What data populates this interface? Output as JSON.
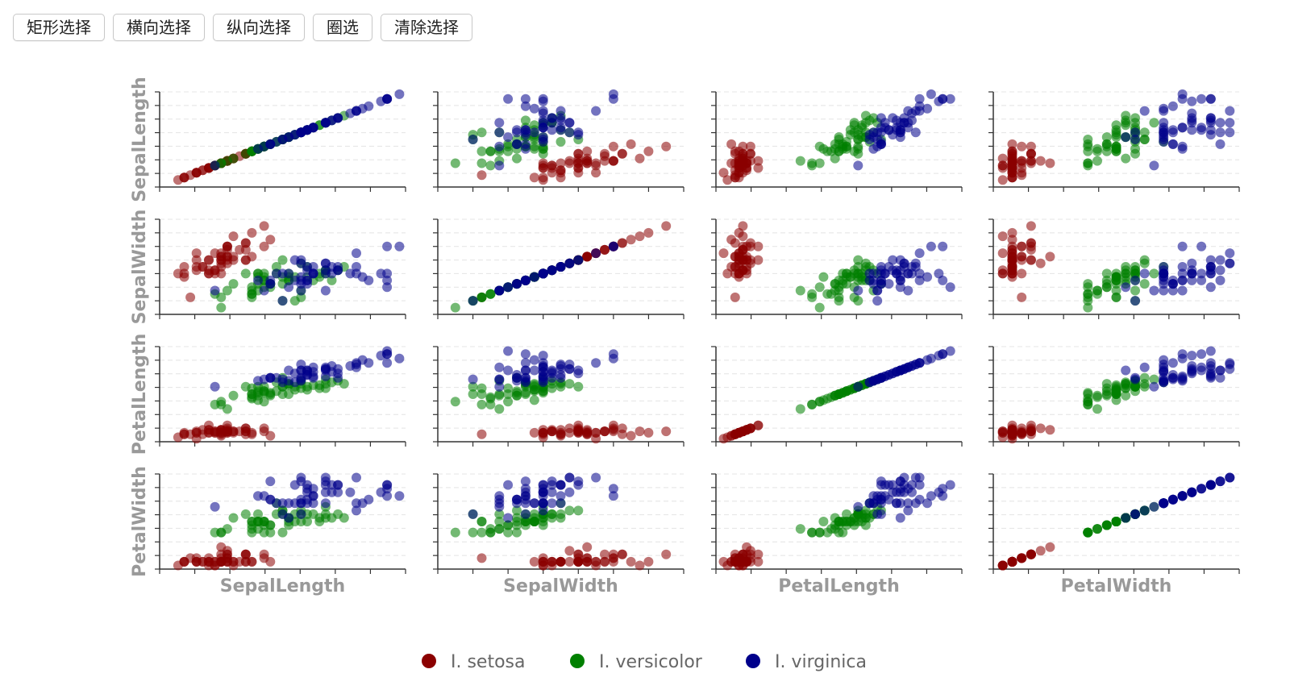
{
  "toolbar": {
    "buttons": [
      "矩形选择",
      "横向选择",
      "纵向选择",
      "圈选",
      "清除选择"
    ]
  },
  "chart_data": {
    "type": "scatter",
    "layout": "scatter-matrix",
    "dimensions": [
      "SepalLength",
      "SepalWidth",
      "PetalLength",
      "PetalWidth"
    ],
    "ranges": {
      "SepalLength": [
        4.0,
        8.0
      ],
      "SepalWidth": [
        1.8,
        4.6
      ],
      "PetalLength": [
        0.8,
        7.2
      ],
      "PetalWidth": [
        0.0,
        2.6
      ]
    },
    "grid": "dashed horizontal",
    "legend_position": "bottom-center",
    "colors": {
      "I. setosa": "#8b0000",
      "I. versicolor": "#008000",
      "I. virginica": "#00008b"
    },
    "series": [
      {
        "name": "I. setosa",
        "points": [
          [
            5.1,
            3.5,
            1.4,
            0.2
          ],
          [
            4.9,
            3.0,
            1.4,
            0.2
          ],
          [
            4.7,
            3.2,
            1.3,
            0.2
          ],
          [
            4.6,
            3.1,
            1.5,
            0.2
          ],
          [
            5.0,
            3.6,
            1.4,
            0.2
          ],
          [
            5.4,
            3.9,
            1.7,
            0.4
          ],
          [
            4.6,
            3.4,
            1.4,
            0.3
          ],
          [
            5.0,
            3.4,
            1.5,
            0.2
          ],
          [
            4.4,
            2.9,
            1.4,
            0.2
          ],
          [
            4.9,
            3.1,
            1.5,
            0.1
          ],
          [
            5.4,
            3.7,
            1.5,
            0.2
          ],
          [
            4.8,
            3.4,
            1.6,
            0.2
          ],
          [
            4.8,
            3.0,
            1.4,
            0.1
          ],
          [
            4.3,
            3.0,
            1.1,
            0.1
          ],
          [
            5.8,
            4.0,
            1.2,
            0.2
          ],
          [
            5.7,
            4.4,
            1.5,
            0.4
          ],
          [
            5.4,
            3.9,
            1.3,
            0.4
          ],
          [
            5.1,
            3.5,
            1.4,
            0.3
          ],
          [
            5.7,
            3.8,
            1.7,
            0.3
          ],
          [
            5.1,
            3.8,
            1.5,
            0.3
          ],
          [
            5.4,
            3.4,
            1.7,
            0.2
          ],
          [
            5.1,
            3.7,
            1.5,
            0.4
          ],
          [
            4.6,
            3.6,
            1.0,
            0.2
          ],
          [
            5.1,
            3.3,
            1.7,
            0.5
          ],
          [
            4.8,
            3.4,
            1.9,
            0.2
          ],
          [
            5.0,
            3.0,
            1.6,
            0.2
          ],
          [
            5.0,
            3.4,
            1.6,
            0.4
          ],
          [
            5.2,
            3.5,
            1.5,
            0.2
          ],
          [
            5.2,
            3.4,
            1.4,
            0.2
          ],
          [
            4.7,
            3.2,
            1.6,
            0.2
          ],
          [
            4.8,
            3.1,
            1.6,
            0.2
          ],
          [
            5.4,
            3.4,
            1.5,
            0.4
          ],
          [
            5.2,
            4.1,
            1.5,
            0.1
          ],
          [
            5.5,
            4.2,
            1.4,
            0.2
          ],
          [
            4.9,
            3.1,
            1.5,
            0.2
          ],
          [
            5.0,
            3.2,
            1.2,
            0.2
          ],
          [
            5.5,
            3.5,
            1.3,
            0.2
          ],
          [
            4.9,
            3.6,
            1.4,
            0.1
          ],
          [
            4.4,
            3.0,
            1.3,
            0.2
          ],
          [
            5.1,
            3.4,
            1.5,
            0.2
          ],
          [
            5.0,
            3.5,
            1.3,
            0.3
          ],
          [
            4.5,
            2.3,
            1.3,
            0.3
          ],
          [
            4.4,
            3.2,
            1.3,
            0.2
          ],
          [
            5.0,
            3.5,
            1.6,
            0.6
          ],
          [
            5.1,
            3.8,
            1.9,
            0.4
          ],
          [
            4.8,
            3.0,
            1.4,
            0.3
          ],
          [
            5.1,
            3.8,
            1.6,
            0.2
          ],
          [
            4.6,
            3.2,
            1.4,
            0.2
          ],
          [
            5.3,
            3.7,
            1.5,
            0.2
          ],
          [
            5.0,
            3.3,
            1.4,
            0.2
          ]
        ]
      },
      {
        "name": "I. versicolor",
        "points": [
          [
            7.0,
            3.2,
            4.7,
            1.4
          ],
          [
            6.4,
            3.2,
            4.5,
            1.5
          ],
          [
            6.9,
            3.1,
            4.9,
            1.5
          ],
          [
            5.5,
            2.3,
            4.0,
            1.3
          ],
          [
            6.5,
            2.8,
            4.6,
            1.5
          ],
          [
            5.7,
            2.8,
            4.5,
            1.3
          ],
          [
            6.3,
            3.3,
            4.7,
            1.6
          ],
          [
            4.9,
            2.4,
            3.3,
            1.0
          ],
          [
            6.6,
            2.9,
            4.6,
            1.3
          ],
          [
            5.2,
            2.7,
            3.9,
            1.4
          ],
          [
            5.0,
            2.0,
            3.5,
            1.0
          ],
          [
            5.9,
            3.0,
            4.2,
            1.5
          ],
          [
            6.0,
            2.2,
            4.0,
            1.0
          ],
          [
            6.1,
            2.9,
            4.7,
            1.4
          ],
          [
            5.6,
            2.9,
            3.6,
            1.3
          ],
          [
            6.7,
            3.1,
            4.4,
            1.4
          ],
          [
            5.6,
            3.0,
            4.5,
            1.5
          ],
          [
            5.8,
            2.7,
            4.1,
            1.0
          ],
          [
            6.2,
            2.2,
            4.5,
            1.5
          ],
          [
            5.6,
            2.5,
            3.9,
            1.1
          ],
          [
            5.9,
            3.2,
            4.8,
            1.8
          ],
          [
            6.1,
            2.8,
            4.0,
            1.3
          ],
          [
            6.3,
            2.5,
            4.9,
            1.5
          ],
          [
            6.1,
            2.8,
            4.7,
            1.2
          ],
          [
            6.4,
            2.9,
            4.3,
            1.3
          ],
          [
            6.6,
            3.0,
            4.4,
            1.4
          ],
          [
            6.8,
            2.8,
            4.8,
            1.4
          ],
          [
            6.7,
            3.0,
            5.0,
            1.7
          ],
          [
            6.0,
            2.9,
            4.5,
            1.5
          ],
          [
            5.7,
            2.6,
            3.5,
            1.0
          ],
          [
            5.5,
            2.4,
            3.8,
            1.1
          ],
          [
            5.5,
            2.4,
            3.7,
            1.0
          ],
          [
            5.8,
            2.7,
            3.9,
            1.2
          ],
          [
            6.0,
            2.7,
            5.1,
            1.6
          ],
          [
            5.4,
            3.0,
            4.5,
            1.5
          ],
          [
            6.0,
            3.4,
            4.5,
            1.6
          ],
          [
            6.7,
            3.1,
            4.7,
            1.5
          ],
          [
            6.3,
            2.3,
            4.4,
            1.3
          ],
          [
            5.6,
            3.0,
            4.1,
            1.3
          ],
          [
            5.5,
            2.5,
            4.0,
            1.3
          ],
          [
            5.5,
            2.6,
            4.4,
            1.2
          ],
          [
            6.1,
            3.0,
            4.6,
            1.4
          ],
          [
            5.8,
            2.6,
            4.0,
            1.2
          ],
          [
            5.0,
            2.3,
            3.3,
            1.0
          ],
          [
            5.6,
            2.7,
            4.2,
            1.3
          ],
          [
            5.7,
            3.0,
            4.2,
            1.2
          ],
          [
            5.7,
            2.9,
            4.2,
            1.3
          ],
          [
            6.2,
            2.9,
            4.3,
            1.3
          ],
          [
            5.1,
            2.5,
            3.0,
            1.1
          ],
          [
            5.7,
            2.8,
            4.1,
            1.3
          ]
        ]
      },
      {
        "name": "I. virginica",
        "points": [
          [
            6.3,
            3.3,
            6.0,
            2.5
          ],
          [
            5.8,
            2.7,
            5.1,
            1.9
          ],
          [
            7.1,
            3.0,
            5.9,
            2.1
          ],
          [
            6.3,
            2.9,
            5.6,
            1.8
          ],
          [
            6.5,
            3.0,
            5.8,
            2.2
          ],
          [
            7.6,
            3.0,
            6.6,
            2.1
          ],
          [
            4.9,
            2.5,
            4.5,
            1.7
          ],
          [
            7.3,
            2.9,
            6.3,
            1.8
          ],
          [
            6.7,
            2.5,
            5.8,
            1.8
          ],
          [
            7.2,
            3.6,
            6.1,
            2.5
          ],
          [
            6.5,
            3.2,
            5.1,
            2.0
          ],
          [
            6.4,
            2.7,
            5.3,
            1.9
          ],
          [
            6.8,
            3.0,
            5.5,
            2.1
          ],
          [
            5.7,
            2.5,
            5.0,
            2.0
          ],
          [
            5.8,
            2.8,
            5.1,
            2.4
          ],
          [
            6.4,
            3.2,
            5.3,
            2.3
          ],
          [
            6.5,
            3.0,
            5.5,
            1.8
          ],
          [
            7.7,
            3.8,
            6.7,
            2.2
          ],
          [
            7.7,
            2.6,
            6.9,
            2.3
          ],
          [
            6.0,
            2.2,
            5.0,
            1.5
          ],
          [
            6.9,
            3.2,
            5.7,
            2.3
          ],
          [
            5.6,
            2.8,
            4.9,
            2.0
          ],
          [
            7.7,
            2.8,
            6.7,
            2.0
          ],
          [
            6.3,
            2.7,
            4.9,
            1.8
          ],
          [
            6.7,
            3.3,
            5.7,
            2.1
          ],
          [
            7.2,
            3.2,
            6.0,
            1.8
          ],
          [
            6.2,
            2.8,
            4.8,
            1.8
          ],
          [
            6.1,
            3.0,
            4.9,
            1.8
          ],
          [
            6.4,
            2.8,
            5.6,
            2.1
          ],
          [
            7.2,
            3.0,
            5.8,
            1.6
          ],
          [
            7.4,
            2.8,
            6.1,
            1.9
          ],
          [
            7.9,
            3.8,
            6.4,
            2.0
          ],
          [
            6.4,
            2.8,
            5.6,
            2.2
          ],
          [
            6.3,
            2.8,
            5.1,
            1.5
          ],
          [
            6.1,
            2.6,
            5.6,
            1.4
          ],
          [
            7.7,
            3.0,
            6.1,
            2.3
          ],
          [
            6.3,
            3.4,
            5.6,
            2.4
          ],
          [
            6.4,
            3.1,
            5.5,
            1.8
          ],
          [
            6.0,
            3.0,
            4.8,
            1.8
          ],
          [
            6.9,
            3.1,
            5.4,
            2.1
          ],
          [
            6.7,
            3.1,
            5.6,
            2.4
          ],
          [
            6.9,
            3.1,
            5.1,
            2.3
          ],
          [
            5.8,
            2.7,
            5.1,
            1.9
          ],
          [
            6.8,
            3.2,
            5.9,
            2.3
          ],
          [
            6.7,
            3.3,
            5.7,
            2.5
          ],
          [
            6.7,
            3.0,
            5.2,
            2.3
          ],
          [
            6.3,
            2.5,
            5.0,
            1.9
          ],
          [
            6.5,
            3.0,
            5.2,
            2.0
          ],
          [
            6.2,
            3.4,
            5.4,
            2.3
          ],
          [
            5.9,
            3.0,
            5.1,
            1.8
          ]
        ]
      }
    ]
  }
}
